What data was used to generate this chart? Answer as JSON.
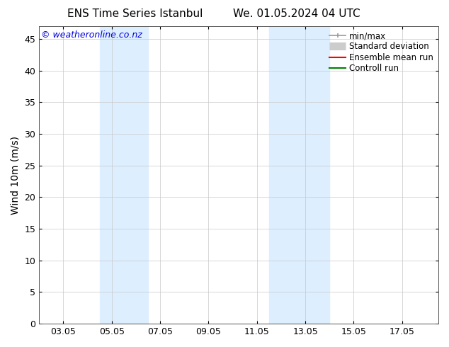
{
  "title_left": "ENS Time Series Istanbul",
  "title_right": "We. 01.05.2024 04 UTC",
  "ylabel": "Wind 10m (m/s)",
  "watermark": "© weatheronline.co.nz",
  "ylim": [
    0,
    47
  ],
  "yticks": [
    0,
    5,
    10,
    15,
    20,
    25,
    30,
    35,
    40,
    45
  ],
  "xtick_labels": [
    "03.05",
    "05.05",
    "07.05",
    "09.05",
    "11.05",
    "13.05",
    "15.05",
    "17.05"
  ],
  "xtick_positions": [
    2,
    4,
    6,
    8,
    10,
    12,
    14,
    16
  ],
  "xlim": [
    1,
    17.5
  ],
  "shaded_bands": [
    {
      "x_start": 3.5,
      "x_end": 5.5,
      "color": "#ddeeff"
    },
    {
      "x_start": 10.5,
      "x_end": 12.0,
      "color": "#ddeeff"
    },
    {
      "x_start": 12.0,
      "x_end": 13.0,
      "color": "#ddeeff"
    }
  ],
  "background_color": "#ffffff",
  "plot_bg_color": "#ffffff",
  "grid_color": "#c8c8c8",
  "legend_items": [
    {
      "label": "min/max",
      "color": "#999999",
      "lw": 1.2
    },
    {
      "label": "Standard deviation",
      "color": "#cccccc",
      "lw": 6
    },
    {
      "label": "Ensemble mean run",
      "color": "#ff0000",
      "lw": 1.5
    },
    {
      "label": "Controll run",
      "color": "#008000",
      "lw": 1.5
    }
  ],
  "title_fontsize": 11,
  "axis_label_fontsize": 10,
  "tick_fontsize": 9,
  "legend_fontsize": 8.5,
  "watermark_color": "#0000dd",
  "watermark_fontsize": 9
}
